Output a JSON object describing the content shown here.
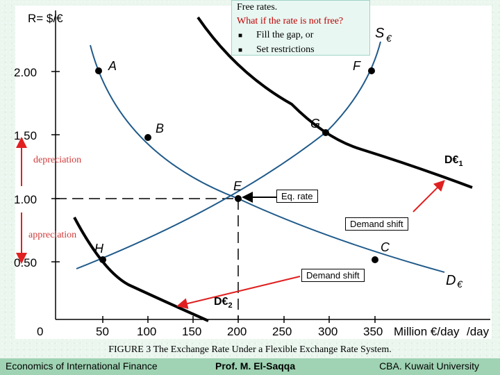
{
  "callout": {
    "title": "Free rates.",
    "question": "What if the rate is not free?",
    "bullets": [
      "Fill the gap, or",
      "Set restrictions"
    ]
  },
  "axes": {
    "y_title": "R= $/€",
    "x_unit": "Million €/day",
    "y_ticks": [
      "2.00",
      "1.50",
      "1.00",
      "0.50"
    ],
    "x_ticks": [
      "0",
      "50",
      "100",
      "150",
      "200",
      "250",
      "300",
      "350"
    ]
  },
  "points": [
    "A",
    "B",
    "E",
    "F",
    "G",
    "H",
    "C"
  ],
  "curve_labels": {
    "supply": "S",
    "supply_subscript": "€",
    "demand": "D",
    "demand_subscript": "€",
    "d1": "D€",
    "d1_sub": "1",
    "d2": "D€",
    "d2_sub": "2"
  },
  "annotations": {
    "eq_rate": "Eq. rate",
    "demand_shift_1": "Demand shift",
    "demand_shift_2": "Demand shift",
    "depreciation": "depreciation",
    "appreciation": "appreciation"
  },
  "caption": "FIGURE 3 The Exchange Rate Under a Flexible Exchange  Rate System.",
  "footer": {
    "left": "Economics of International Finance",
    "center": "Prof. M. El-Saqqa",
    "right": "CBA. Kuwait University"
  },
  "colors": {
    "curves_blue": "#1f5a8a",
    "shifted_black": "#000000",
    "arrow_red": "#e02020",
    "annotation_red": "#d03a3a",
    "footer_bar": "#9fd3b3"
  }
}
